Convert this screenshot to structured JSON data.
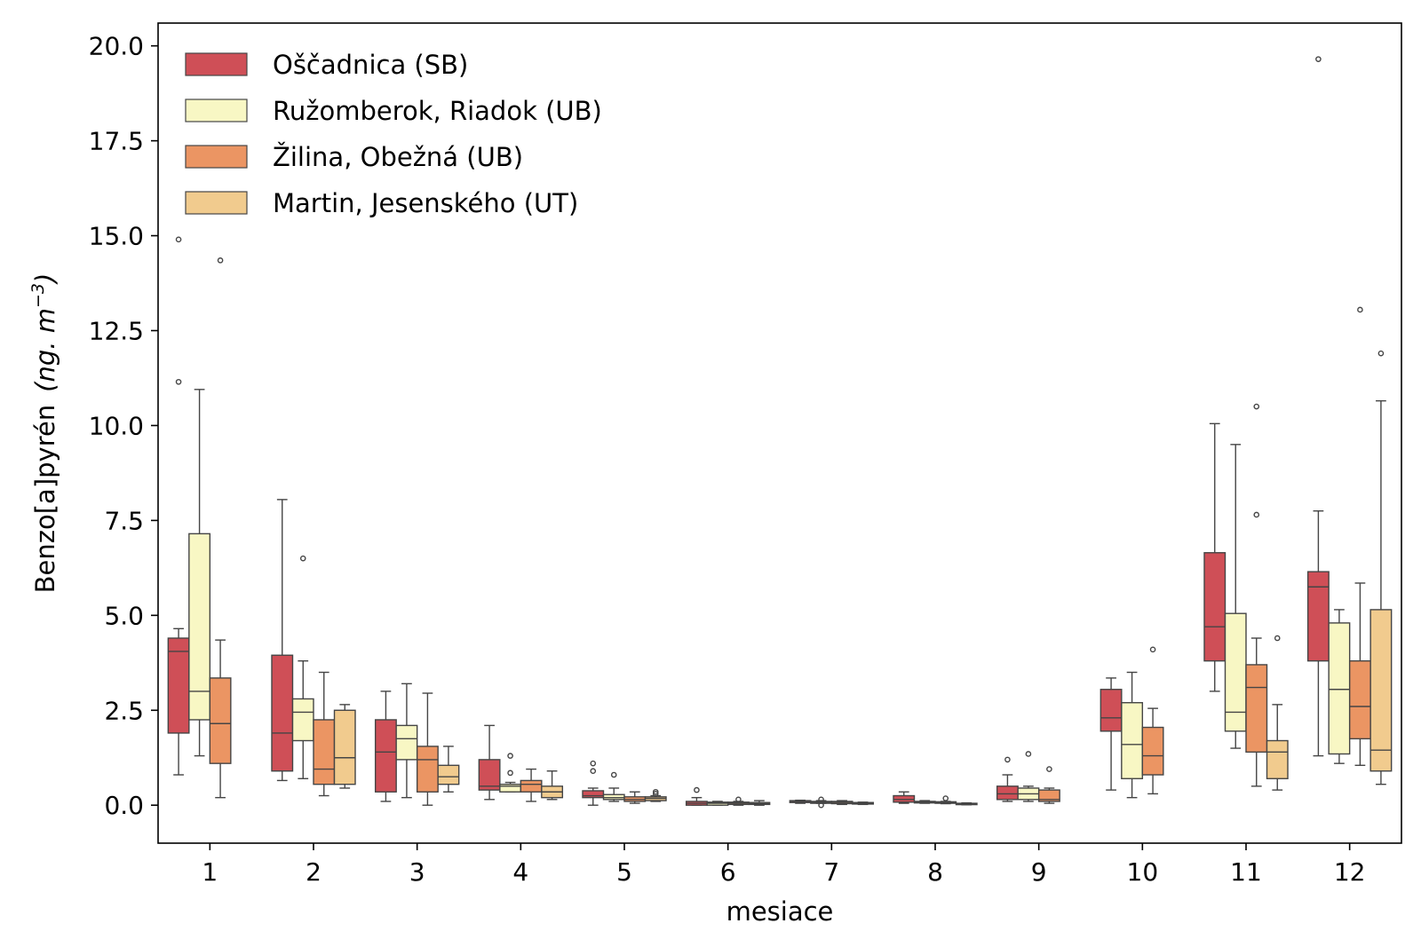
{
  "chart_data": {
    "type": "box",
    "xlabel": "mesiace",
    "ylabel": "Benzo[a]pyrén",
    "ylabel_unit": "(ng. m",
    "ylabel_unit_exp": "−3",
    "ylabel_unit_close": ")",
    "ylim": [
      -1.0,
      20.6
    ],
    "yticks": [
      0.0,
      2.5,
      5.0,
      7.5,
      10.0,
      12.5,
      15.0,
      17.5,
      20.0
    ],
    "ytick_labels": [
      "0.0",
      "2.5",
      "5.0",
      "7.5",
      "10.0",
      "12.5",
      "15.0",
      "17.5",
      "20.0"
    ],
    "categories": [
      "1",
      "2",
      "3",
      "4",
      "5",
      "6",
      "7",
      "8",
      "9",
      "10",
      "11",
      "12"
    ],
    "legend_position": "upper-left",
    "series": [
      {
        "name": "Oščadnica (SB)",
        "color": "#cf4f57",
        "boxes": [
          {
            "whislo": 0.8,
            "q1": 1.9,
            "med": 4.05,
            "q3": 4.4,
            "whishi": 4.65,
            "fliers": [
              11.15,
              14.9
            ]
          },
          {
            "whislo": 0.65,
            "q1": 0.9,
            "med": 1.9,
            "q3": 3.95,
            "whishi": 8.05,
            "fliers": []
          },
          {
            "whislo": 0.1,
            "q1": 0.35,
            "med": 1.4,
            "q3": 2.25,
            "whishi": 3.0,
            "fliers": []
          },
          {
            "whislo": 0.15,
            "q1": 0.4,
            "med": 0.5,
            "q3": 1.2,
            "whishi": 2.1,
            "fliers": []
          },
          {
            "whislo": 0.0,
            "q1": 0.2,
            "med": 0.25,
            "q3": 0.38,
            "whishi": 0.45,
            "fliers": [
              0.9,
              1.1
            ]
          },
          {
            "whislo": 0.0,
            "q1": 0.0,
            "med": 0.05,
            "q3": 0.1,
            "whishi": 0.2,
            "fliers": [
              0.4
            ]
          },
          {
            "whislo": 0.05,
            "q1": 0.07,
            "med": 0.1,
            "q3": 0.12,
            "whishi": 0.13,
            "fliers": []
          },
          {
            "whislo": 0.05,
            "q1": 0.08,
            "med": 0.15,
            "q3": 0.25,
            "whishi": 0.35,
            "fliers": []
          },
          {
            "whislo": 0.1,
            "q1": 0.15,
            "med": 0.3,
            "q3": 0.5,
            "whishi": 0.8,
            "fliers": [
              1.2
            ]
          },
          {
            "whislo": 0.4,
            "q1": 1.95,
            "med": 2.3,
            "q3": 3.05,
            "whishi": 3.35,
            "fliers": []
          },
          {
            "whislo": 3.0,
            "q1": 3.8,
            "med": 4.7,
            "q3": 6.65,
            "whishi": 10.05,
            "fliers": []
          },
          {
            "whislo": 1.3,
            "q1": 3.8,
            "med": 5.75,
            "q3": 6.15,
            "whishi": 7.75,
            "fliers": [
              19.65
            ]
          }
        ]
      },
      {
        "name": "Ružomberok, Riadok (UB)",
        "color": "#f8f7c4",
        "boxes": [
          {
            "whislo": 1.3,
            "q1": 2.25,
            "med": 3.0,
            "q3": 7.15,
            "whishi": 10.95,
            "fliers": []
          },
          {
            "whislo": 0.7,
            "q1": 1.7,
            "med": 2.45,
            "q3": 2.8,
            "whishi": 3.8,
            "fliers": [
              6.5
            ]
          },
          {
            "whislo": 0.2,
            "q1": 1.2,
            "med": 1.75,
            "q3": 2.1,
            "whishi": 3.2,
            "fliers": []
          },
          {
            "whislo": 0.35,
            "q1": 0.35,
            "med": 0.5,
            "q3": 0.55,
            "whishi": 0.6,
            "fliers": [
              0.85,
              1.3
            ]
          },
          {
            "whislo": 0.1,
            "q1": 0.15,
            "med": 0.2,
            "q3": 0.28,
            "whishi": 0.45,
            "fliers": [
              0.8
            ]
          },
          {
            "whislo": 0.0,
            "q1": 0.0,
            "med": 0.05,
            "q3": 0.08,
            "whishi": 0.1,
            "fliers": []
          },
          {
            "whislo": 0.05,
            "q1": 0.05,
            "med": 0.07,
            "q3": 0.1,
            "whishi": 0.12,
            "fliers": [
              0.0,
              0.15
            ]
          },
          {
            "whislo": 0.05,
            "q1": 0.06,
            "med": 0.08,
            "q3": 0.1,
            "whishi": 0.12,
            "fliers": []
          },
          {
            "whislo": 0.1,
            "q1": 0.15,
            "med": 0.3,
            "q3": 0.45,
            "whishi": 0.5,
            "fliers": [
              1.35
            ]
          },
          {
            "whislo": 0.2,
            "q1": 0.7,
            "med": 1.6,
            "q3": 2.7,
            "whishi": 3.5,
            "fliers": []
          },
          {
            "whislo": 1.5,
            "q1": 1.95,
            "med": 2.45,
            "q3": 5.05,
            "whishi": 9.5,
            "fliers": []
          },
          {
            "whislo": 1.1,
            "q1": 1.35,
            "med": 3.05,
            "q3": 4.8,
            "whishi": 5.15,
            "fliers": []
          }
        ]
      },
      {
        "name": "Žilina, Obežná (UB)",
        "color": "#eb9563",
        "boxes": [
          {
            "whislo": 0.2,
            "q1": 1.1,
            "med": 2.15,
            "q3": 3.35,
            "whishi": 4.35,
            "fliers": [
              14.35
            ]
          },
          {
            "whislo": 0.25,
            "q1": 0.55,
            "med": 0.95,
            "q3": 2.25,
            "whishi": 3.5,
            "fliers": []
          },
          {
            "whislo": 0.0,
            "q1": 0.35,
            "med": 1.2,
            "q3": 1.55,
            "whishi": 2.95,
            "fliers": []
          },
          {
            "whislo": 0.1,
            "q1": 0.35,
            "med": 0.55,
            "q3": 0.65,
            "whishi": 0.95,
            "fliers": []
          },
          {
            "whislo": 0.05,
            "q1": 0.1,
            "med": 0.15,
            "q3": 0.22,
            "whishi": 0.35,
            "fliers": []
          },
          {
            "whislo": 0.0,
            "q1": 0.02,
            "med": 0.05,
            "q3": 0.08,
            "whishi": 0.1,
            "fliers": [
              0.15
            ]
          },
          {
            "whislo": 0.02,
            "q1": 0.04,
            "med": 0.07,
            "q3": 0.1,
            "whishi": 0.12,
            "fliers": []
          },
          {
            "whislo": 0.04,
            "q1": 0.05,
            "med": 0.07,
            "q3": 0.09,
            "whishi": 0.1,
            "fliers": [
              0.18
            ]
          },
          {
            "whislo": 0.05,
            "q1": 0.1,
            "med": 0.15,
            "q3": 0.4,
            "whishi": 0.45,
            "fliers": [
              0.95
            ]
          },
          {
            "whislo": 0.3,
            "q1": 0.8,
            "med": 1.3,
            "q3": 2.05,
            "whishi": 2.55,
            "fliers": [
              4.1
            ]
          },
          {
            "whislo": 0.5,
            "q1": 1.4,
            "med": 3.1,
            "q3": 3.7,
            "whishi": 4.4,
            "fliers": [
              7.65,
              10.5
            ]
          },
          {
            "whislo": 1.05,
            "q1": 1.75,
            "med": 2.6,
            "q3": 3.8,
            "whishi": 5.85,
            "fliers": [
              13.05
            ]
          }
        ]
      },
      {
        "name": "Martin, Jesenského (UT)",
        "color": "#f1cb8e",
        "boxes": [
          {
            "whislo": null,
            "q1": null,
            "med": null,
            "q3": null,
            "whishi": null,
            "fliers": []
          },
          {
            "whislo": 0.45,
            "q1": 0.55,
            "med": 1.25,
            "q3": 2.5,
            "whishi": 2.65,
            "fliers": []
          },
          {
            "whislo": 0.35,
            "q1": 0.55,
            "med": 0.75,
            "q3": 1.05,
            "whishi": 1.55,
            "fliers": []
          },
          {
            "whislo": 0.15,
            "q1": 0.2,
            "med": 0.35,
            "q3": 0.5,
            "whishi": 0.9,
            "fliers": []
          },
          {
            "whislo": 0.1,
            "q1": 0.12,
            "med": 0.18,
            "q3": 0.22,
            "whishi": 0.25,
            "fliers": [
              0.3,
              0.35
            ]
          },
          {
            "whislo": 0.0,
            "q1": 0.02,
            "med": 0.04,
            "q3": 0.07,
            "whishi": 0.12,
            "fliers": []
          },
          {
            "whislo": 0.02,
            "q1": 0.03,
            "med": 0.05,
            "q3": 0.07,
            "whishi": 0.08,
            "fliers": []
          },
          {
            "whislo": 0.01,
            "q1": 0.02,
            "med": 0.03,
            "q3": 0.05,
            "whishi": 0.06,
            "fliers": []
          },
          {
            "whislo": null,
            "q1": null,
            "med": null,
            "q3": null,
            "whishi": null,
            "fliers": []
          },
          {
            "whislo": null,
            "q1": null,
            "med": null,
            "q3": null,
            "whishi": null,
            "fliers": []
          },
          {
            "whislo": 0.4,
            "q1": 0.7,
            "med": 1.4,
            "q3": 1.7,
            "whishi": 2.65,
            "fliers": [
              4.4
            ]
          },
          {
            "whislo": 0.55,
            "q1": 0.9,
            "med": 1.45,
            "q3": 5.15,
            "whishi": 10.65,
            "fliers": [
              11.9
            ]
          }
        ]
      }
    ]
  }
}
